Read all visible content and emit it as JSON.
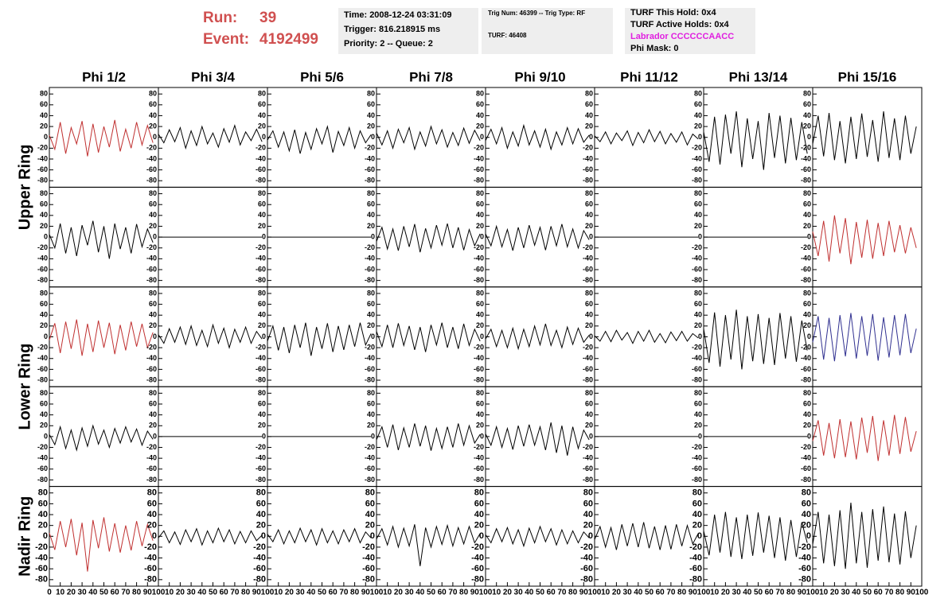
{
  "header": {
    "run_label": "Run:",
    "run": 39,
    "event_label": "Event:",
    "event": 4192499
  },
  "info_boxes": [
    [
      "Time: 2008-12-24 03:31:09",
      "Trigger: 816.218915 ms",
      "Priority: 2 -- Queue: 2"
    ],
    [
      "Trig Num: 46399 -- Trig Type: RF",
      "TURF: 46408"
    ],
    [
      "TURF This Hold: 0x4",
      "TURF Active Holds: 0x4",
      "Labrador CCCCCCAACC",
      "Phi Mask: 0"
    ]
  ],
  "columns": [
    "Phi 1/2",
    "Phi 3/4",
    "Phi 5/6",
    "Phi 7/8",
    "Phi 9/10",
    "Phi 11/12",
    "Phi 13/14",
    "Phi 15/16"
  ],
  "ring_labels": [
    "Upper Ring",
    "Lower Ring",
    "Nadir Ring"
  ],
  "xlim": [
    0,
    100
  ],
  "xticks": [
    0,
    10,
    20,
    30,
    40,
    50,
    60,
    70,
    80,
    90,
    100
  ],
  "ylim": [
    -92,
    92
  ],
  "yticks": [
    -80,
    -60,
    -40,
    -20,
    0,
    20,
    40,
    60,
    80
  ],
  "x": [
    0,
    5,
    10,
    15,
    20,
    25,
    30,
    35,
    40,
    45,
    50,
    55,
    60,
    65,
    70,
    75,
    80,
    85,
    90,
    95
  ],
  "panels": [
    [
      {
        "color": "#c03030",
        "values": [
          4,
          -22,
          28,
          -30,
          18,
          -12,
          30,
          -35,
          25,
          -28,
          20,
          -18,
          32,
          -26,
          15,
          -20,
          28,
          -14,
          22,
          -10
        ]
      },
      {
        "color": "#000000",
        "values": [
          6,
          -10,
          14,
          -8,
          18,
          -20,
          12,
          -15,
          20,
          -12,
          8,
          -18,
          16,
          -9,
          22,
          -14,
          10,
          -6,
          15,
          -8
        ]
      },
      {
        "color": "#000000",
        "values": [
          -5,
          12,
          -18,
          10,
          -25,
          14,
          -30,
          9,
          -22,
          16,
          -12,
          20,
          -28,
          11,
          -15,
          18,
          -20,
          12,
          -10,
          5
        ]
      },
      {
        "color": "#000000",
        "values": [
          8,
          -14,
          12,
          -20,
          15,
          -10,
          18,
          -22,
          10,
          -16,
          20,
          -12,
          14,
          -18,
          9,
          -15,
          17,
          -11,
          13,
          -6
        ]
      },
      {
        "color": "#000000",
        "values": [
          -6,
          15,
          -12,
          18,
          -20,
          10,
          -16,
          22,
          -14,
          12,
          -18,
          15,
          -22,
          10,
          -14,
          18,
          -12,
          16,
          -9,
          4
        ]
      },
      {
        "color": "#000000",
        "values": [
          3,
          -8,
          10,
          -12,
          8,
          -6,
          12,
          -15,
          9,
          -10,
          14,
          -8,
          11,
          -12,
          7,
          -9,
          10,
          -14,
          6,
          -3
        ]
      },
      {
        "color": "#000000",
        "values": [
          10,
          -45,
          38,
          -50,
          42,
          -30,
          48,
          -55,
          35,
          -40,
          30,
          -60,
          45,
          -38,
          40,
          -48,
          36,
          -42,
          28,
          -30
        ]
      },
      {
        "color": "#000000",
        "values": [
          -12,
          40,
          -35,
          45,
          -42,
          30,
          -48,
          38,
          -40,
          44,
          -36,
          32,
          -45,
          48,
          -38,
          35,
          -42,
          40,
          -30,
          20
        ]
      }
    ],
    [
      {
        "color": "#000000",
        "values": [
          5,
          -20,
          25,
          -30,
          18,
          -35,
          22,
          -15,
          30,
          -28,
          20,
          -40,
          25,
          -22,
          18,
          -30,
          24,
          -18,
          15,
          -10
        ]
      },
      {
        "color": "#000000",
        "values": [
          0,
          0,
          0,
          0,
          0,
          0,
          0,
          0,
          0,
          0,
          0,
          0,
          0,
          0,
          0,
          0,
          0,
          0,
          0,
          0
        ]
      },
      {
        "color": "#000000",
        "values": [
          0,
          0,
          0,
          0,
          0,
          0,
          0,
          0,
          0,
          0,
          0,
          0,
          0,
          0,
          0,
          0,
          0,
          0,
          0,
          0
        ]
      },
      {
        "color": "#000000",
        "values": [
          -8,
          18,
          -22,
          15,
          -25,
          20,
          -18,
          24,
          -28,
          16,
          -20,
          22,
          -15,
          25,
          -20,
          18,
          -24,
          14,
          -16,
          6
        ]
      },
      {
        "color": "#000000",
        "values": [
          6,
          -16,
          20,
          -18,
          14,
          -25,
          18,
          -20,
          22,
          -15,
          18,
          -24,
          20,
          -16,
          24,
          -18,
          15,
          -20,
          12,
          -5
        ]
      },
      {
        "color": "#000000",
        "values": [
          0,
          0,
          0,
          0,
          0,
          0,
          0,
          0,
          0,
          0,
          0,
          0,
          0,
          0,
          0,
          0,
          0,
          0,
          0,
          0
        ]
      },
      {
        "color": "#000000",
        "values": [
          0,
          0,
          0,
          0,
          0,
          0,
          0,
          0,
          0,
          0,
          0,
          0,
          0,
          0,
          0,
          0,
          0,
          0,
          0,
          0
        ]
      },
      {
        "color": "#c03030",
        "values": [
          10,
          -35,
          30,
          -45,
          40,
          -30,
          35,
          -50,
          28,
          -38,
          32,
          -40,
          26,
          -35,
          30,
          -28,
          22,
          -30,
          18,
          -20
        ]
      }
    ],
    [
      {
        "color": "#c03030",
        "values": [
          -6,
          25,
          -30,
          28,
          -22,
          32,
          -35,
          24,
          -28,
          30,
          -20,
          26,
          -32,
          22,
          -25,
          28,
          -18,
          24,
          -20,
          8
        ]
      },
      {
        "color": "#000000",
        "values": [
          4,
          -12,
          15,
          -10,
          18,
          -14,
          20,
          -16,
          12,
          -18,
          22,
          -12,
          16,
          -20,
          14,
          -10,
          18,
          -12,
          10,
          -4
        ]
      },
      {
        "color": "#000000",
        "values": [
          -8,
          20,
          -25,
          18,
          -30,
          22,
          -20,
          26,
          -35,
          18,
          -22,
          25,
          -28,
          20,
          -24,
          22,
          -18,
          26,
          -15,
          6
        ]
      },
      {
        "color": "#000000",
        "values": [
          10,
          -18,
          22,
          -20,
          25,
          -16,
          20,
          -24,
          18,
          -28,
          22,
          -15,
          26,
          -20,
          18,
          -22,
          24,
          -16,
          14,
          -8
        ]
      },
      {
        "color": "#000000",
        "values": [
          -4,
          14,
          -18,
          12,
          -20,
          16,
          -22,
          14,
          -18,
          20,
          -15,
          24,
          -16,
          12,
          -20,
          18,
          -14,
          16,
          -10,
          3
        ]
      },
      {
        "color": "#000000",
        "values": [
          2,
          -8,
          10,
          -9,
          12,
          -6,
          8,
          -12,
          10,
          -8,
          12,
          -10,
          6,
          -11,
          9,
          -7,
          10,
          -8,
          6,
          -2
        ]
      },
      {
        "color": "#000000",
        "values": [
          15,
          -48,
          45,
          -55,
          40,
          -42,
          50,
          -60,
          38,
          -45,
          42,
          -50,
          35,
          -52,
          44,
          -40,
          38,
          -46,
          30,
          -25
        ]
      },
      {
        "color": "#303090",
        "values": [
          -10,
          38,
          -42,
          35,
          -45,
          40,
          -36,
          44,
          -40,
          38,
          -35,
          42,
          -44,
          36,
          -38,
          40,
          -34,
          42,
          -30,
          15
        ]
      }
    ],
    [
      {
        "color": "#000000",
        "values": [
          4,
          -15,
          18,
          -22,
          12,
          -25,
          16,
          -18,
          20,
          -14,
          12,
          -20,
          15,
          -12,
          18,
          -10,
          14,
          -16,
          10,
          -5
        ]
      },
      {
        "color": "#000000",
        "values": [
          0,
          0,
          0,
          0,
          0,
          0,
          0,
          0,
          0,
          0,
          0,
          0,
          0,
          0,
          0,
          0,
          0,
          0,
          0,
          0
        ]
      },
      {
        "color": "#000000",
        "values": [
          0,
          0,
          0,
          0,
          0,
          0,
          0,
          0,
          0,
          0,
          0,
          0,
          0,
          0,
          0,
          0,
          0,
          0,
          0,
          0
        ]
      },
      {
        "color": "#000000",
        "values": [
          -6,
          18,
          -20,
          22,
          -25,
          16,
          -20,
          24,
          -18,
          20,
          -26,
          15,
          -22,
          18,
          -20,
          24,
          -16,
          20,
          -12,
          4
        ]
      },
      {
        "color": "#000000",
        "values": [
          5,
          -16,
          18,
          -20,
          15,
          -24,
          20,
          -18,
          22,
          -16,
          18,
          -25,
          26,
          -30,
          20,
          -35,
          18,
          -22,
          12,
          -6
        ]
      },
      {
        "color": "#000000",
        "values": [
          0,
          0,
          0,
          0,
          0,
          0,
          0,
          0,
          0,
          0,
          0,
          0,
          0,
          0,
          0,
          0,
          0,
          0,
          0,
          0
        ]
      },
      {
        "color": "#000000",
        "values": [
          0,
          0,
          0,
          0,
          0,
          0,
          0,
          0,
          0,
          0,
          0,
          0,
          0,
          0,
          0,
          0,
          0,
          0,
          0,
          0
        ]
      },
      {
        "color": "#c03030",
        "values": [
          -8,
          30,
          -35,
          25,
          -40,
          32,
          -38,
          28,
          -42,
          35,
          -30,
          38,
          -45,
          30,
          -35,
          40,
          -32,
          36,
          -28,
          10
        ]
      }
    ],
    [
      {
        "color": "#c03030",
        "values": [
          6,
          -25,
          28,
          -20,
          32,
          -35,
          25,
          -65,
          30,
          -22,
          35,
          -28,
          24,
          -30,
          20,
          -26,
          28,
          -18,
          22,
          -8
        ]
      },
      {
        "color": "#000000",
        "values": [
          -3,
          10,
          -12,
          8,
          -15,
          12,
          -10,
          14,
          -16,
          10,
          -12,
          15,
          -10,
          12,
          -14,
          9,
          -12,
          10,
          -8,
          2
        ]
      },
      {
        "color": "#000000",
        "values": [
          4,
          -10,
          12,
          -14,
          10,
          -12,
          15,
          -10,
          12,
          -16,
          14,
          -12,
          10,
          -14,
          12,
          -10,
          14,
          -12,
          8,
          -3
        ]
      },
      {
        "color": "#000000",
        "values": [
          -5,
          14,
          -16,
          18,
          -20,
          15,
          -18,
          22,
          -55,
          16,
          -20,
          18,
          -15,
          20,
          -18,
          16,
          -14,
          18,
          -12,
          5
        ]
      },
      {
        "color": "#000000",
        "values": [
          3,
          -12,
          14,
          -10,
          16,
          -14,
          12,
          -18,
          15,
          -12,
          18,
          -10,
          14,
          -16,
          12,
          -14,
          10,
          -12,
          8,
          -3
        ]
      },
      {
        "color": "#000000",
        "values": [
          -6,
          18,
          -20,
          16,
          -25,
          22,
          -18,
          24,
          -20,
          26,
          -22,
          18,
          -25,
          20,
          -24,
          22,
          -18,
          20,
          -14,
          5
        ]
      },
      {
        "color": "#000000",
        "values": [
          10,
          -35,
          40,
          -30,
          45,
          -38,
          35,
          -42,
          40,
          -36,
          44,
          -30,
          38,
          -40,
          35,
          -45,
          30,
          -38,
          26,
          -12
        ]
      },
      {
        "color": "#000000",
        "values": [
          -15,
          45,
          -50,
          40,
          -55,
          48,
          -60,
          62,
          -50,
          45,
          -58,
          50,
          -45,
          55,
          -48,
          42,
          -52,
          46,
          -40,
          20
        ]
      }
    ]
  ]
}
